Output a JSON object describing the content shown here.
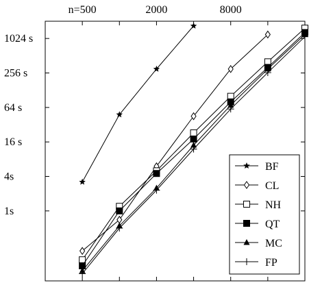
{
  "chart_data": {
    "type": "line",
    "title": "",
    "xlabel": "",
    "ylabel": "",
    "x_scale": "log2",
    "y_scale": "log2",
    "xlim": [
      250,
      32000
    ],
    "ylim": [
      0.06,
      2048
    ],
    "x_ticks": [
      500,
      1000,
      2000,
      4000,
      8000,
      16000
    ],
    "x_tick_labels_top": [
      {
        "value": 500,
        "label": "n=500"
      },
      {
        "value": 2000,
        "label": "2000"
      },
      {
        "value": 8000,
        "label": "8000"
      }
    ],
    "y_ticks": [
      {
        "value": 1,
        "label": "1s"
      },
      {
        "value": 4,
        "label": "4s"
      },
      {
        "value": 16,
        "label": "16 s"
      },
      {
        "value": 64,
        "label": "64 s"
      },
      {
        "value": 256,
        "label": "256 s"
      },
      {
        "value": 1024,
        "label": "1024 s"
      }
    ],
    "grid": false,
    "legend_position": "bottom-right",
    "series": [
      {
        "name": "BF",
        "marker": "star",
        "x": [
          500,
          1000,
          2000,
          4000
        ],
        "y": [
          3.2,
          48,
          300,
          1700
        ]
      },
      {
        "name": "CL",
        "marker": "diamond-open",
        "x": [
          500,
          1000,
          2000,
          4000,
          8000,
          16000
        ],
        "y": [
          0.2,
          0.7,
          6,
          45,
          300,
          1200
        ]
      },
      {
        "name": "NH",
        "marker": "square-open",
        "x": [
          500,
          1000,
          2000,
          4000,
          8000,
          16000,
          32000
        ],
        "y": [
          0.14,
          1.2,
          5.0,
          23,
          100,
          400,
          1550
        ]
      },
      {
        "name": "QT",
        "marker": "square-filled",
        "x": [
          500,
          1000,
          2000,
          4000,
          8000,
          16000,
          32000
        ],
        "y": [
          0.11,
          1.0,
          4.5,
          18,
          80,
          320,
          1300
        ]
      },
      {
        "name": "MC",
        "marker": "triangle-filled",
        "x": [
          500,
          1000,
          2000,
          4000,
          8000,
          16000,
          32000
        ],
        "y": [
          0.09,
          0.55,
          2.5,
          14,
          70,
          300,
          1200
        ]
      },
      {
        "name": "FP",
        "marker": "plus",
        "x": [
          500,
          1000,
          2000,
          4000,
          8000,
          16000,
          32000
        ],
        "y": [
          0.08,
          0.5,
          2.3,
          12,
          60,
          260,
          1100
        ]
      }
    ]
  }
}
